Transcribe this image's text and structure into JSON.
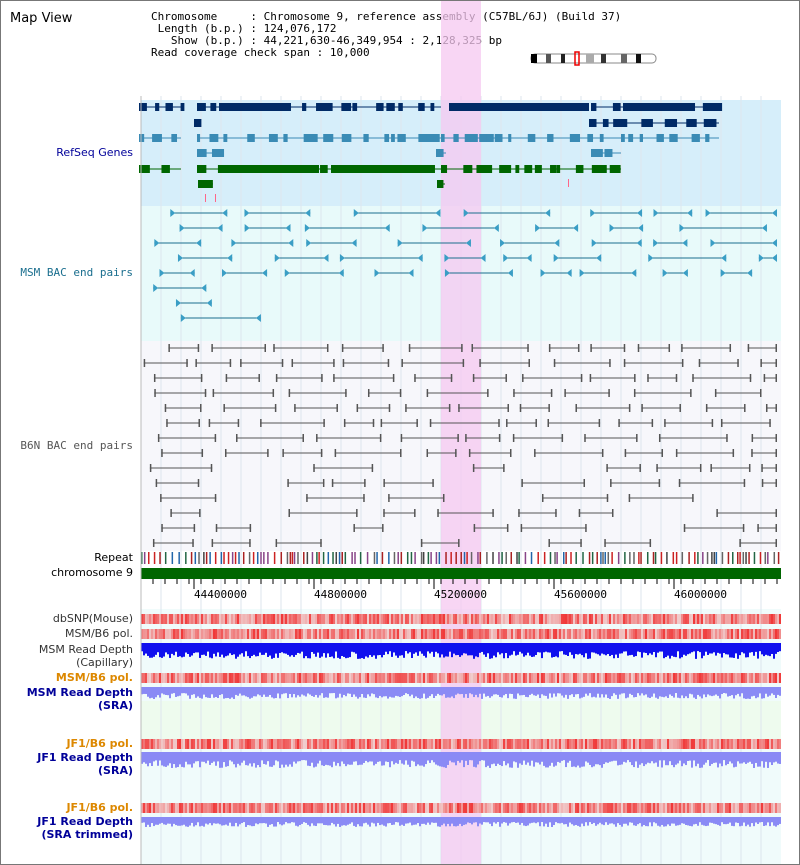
{
  "title": "Map View",
  "info": {
    "chromosome_key": "Chromosome",
    "chromosome_value": "Chromosome 9, reference assembly (C57BL/6J) (Build 37)",
    "length_key": "Length (b.p.)",
    "length_value": "124,076,172",
    "show_key": "Show (b.p.)",
    "show_value": "44,221,630-46,349,954 : 2,128,325 bp",
    "coverage_key": "Read coverage check span",
    "coverage_value": "10,000"
  },
  "tracks": {
    "refseq": "RefSeq Genes",
    "msm_bac": "MSM BAC end pairs",
    "b6n_bac": "B6N BAC end pairs",
    "repeat": "Repeat",
    "chromosome": "chromosome 9",
    "dbsnp": "dbSNP(Mouse)",
    "msm_b6_pol": "MSM/B6 pol.",
    "msm_read_depth_cap_1": "MSM Read Depth",
    "msm_read_depth_cap_2": "(Capillary)",
    "msm_b6_pol_sra": "MSM/B6 pol.",
    "msm_read_depth_sra_1": "MSM Read Depth",
    "msm_read_depth_sra_2": "(SRA)",
    "jf1_b6_pol": "JF1/B6 pol.",
    "jf1_read_depth_1": "JF1 Read Depth",
    "jf1_read_depth_2": "(SRA)",
    "jf1_b6_pol_2": "JF1/B6 pol.",
    "jf1_read_depth_trim_1": "JF1 Read Depth",
    "jf1_read_depth_trim_2": "(SRA trimmed)"
  },
  "axis": {
    "ticks": [
      "44400000",
      "44800000",
      "45200000",
      "45600000",
      "46000000"
    ]
  },
  "colors": {
    "gene_dark": "#002a66",
    "gene_mid": "#3a8bb5",
    "gene_green": "#006600",
    "highlight": "#f5c8f0",
    "refseq_bg": "#d6eefa",
    "msm_bg": "#e8fafa",
    "bac_line": "#1a6e8e",
    "b6n_line": "#555555",
    "depth_blue": "#1010ee",
    "depth_light": "#8a8af5",
    "pol_red": "#ee2222",
    "chrom_green": "#006600",
    "orange_label": "#dd8800",
    "navy_label": "#000099"
  }
}
